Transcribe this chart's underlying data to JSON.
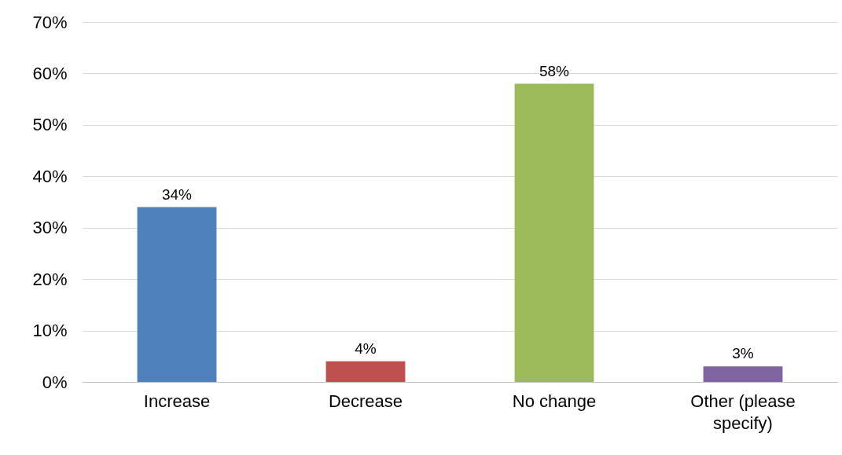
{
  "chart_data": {
    "type": "bar",
    "categories": [
      "Increase",
      "Decrease",
      "No change",
      "Other (please specify)"
    ],
    "values": [
      34,
      4,
      58,
      3
    ],
    "colors": [
      "#4f81bd",
      "#c0504d",
      "#9bbb59",
      "#8064a2"
    ],
    "value_labels": [
      "34%",
      "4%",
      "58%",
      "3%"
    ],
    "ylim": [
      0,
      70
    ],
    "yticks": [
      {
        "value": 0,
        "label": "0%"
      },
      {
        "value": 10,
        "label": "10%"
      },
      {
        "value": 20,
        "label": "20%"
      },
      {
        "value": 30,
        "label": "30%"
      },
      {
        "value": 40,
        "label": "40%"
      },
      {
        "value": 50,
        "label": "50%"
      },
      {
        "value": 60,
        "label": "60%"
      },
      {
        "value": 70,
        "label": "70%"
      }
    ],
    "grid": "y"
  }
}
